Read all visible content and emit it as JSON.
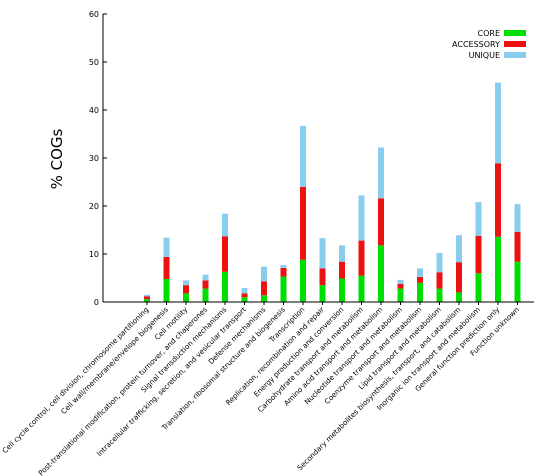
{
  "chart_data": {
    "type": "bar",
    "stacked": true,
    "title": "",
    "xlabel": "",
    "ylabel": "% COGs",
    "ylim": [
      0,
      60
    ],
    "yticks": [
      0,
      10,
      20,
      30,
      40,
      50,
      60
    ],
    "grid": false,
    "legend_position": "top-right",
    "categories": [
      "Cell cycle control, cell division, chromosome partitioning",
      "Cell wall/membrane/envelope biogenesis",
      "Cell motility",
      "Post-translational modification, protein turnover, and chaperones",
      "Signal transduction mechanisms",
      "Intracellular trafficking, secretion, and vesicular transport",
      "Defense mechanisms",
      "Translation, ribosomal structure and biogenesis",
      "Transcription",
      "Replication, recombination and repair",
      "Energy production and conversion",
      "Carbohydrate transport and metabolism",
      "Amino acid transport and metabolism",
      "Nucleotide transport and metabolism",
      "Coenzyme transport and metabolism",
      "Lipid transport and metabolism",
      "Secondary metabolites biosynthesis, transport, and catabolism",
      "Inorganic ion transport and metabolism",
      "General function prediction only",
      "Function unknown"
    ],
    "series": [
      {
        "name": "CORE",
        "color": "#00dd00",
        "values": [
          0.6,
          4.8,
          1.8,
          2.8,
          6.3,
          1.0,
          1.4,
          5.3,
          8.8,
          3.5,
          4.9,
          5.5,
          11.8,
          2.8,
          4.0,
          2.8,
          2.0,
          6.0,
          13.6,
          8.4
        ]
      },
      {
        "name": "ACCESSORY",
        "color": "#ee1111",
        "values": [
          0.6,
          4.6,
          1.7,
          1.7,
          7.4,
          0.8,
          2.9,
          1.8,
          15.2,
          3.5,
          3.5,
          7.3,
          9.8,
          1.0,
          1.2,
          3.4,
          6.3,
          7.8,
          15.3,
          6.2
        ]
      },
      {
        "name": "UNIQUE",
        "color": "#88ccee",
        "values": [
          0.3,
          4.0,
          1.0,
          1.2,
          4.7,
          1.1,
          3.1,
          0.6,
          12.7,
          6.3,
          3.4,
          9.4,
          10.6,
          0.8,
          1.8,
          4.0,
          5.6,
          7.0,
          16.8,
          5.8
        ]
      }
    ]
  }
}
